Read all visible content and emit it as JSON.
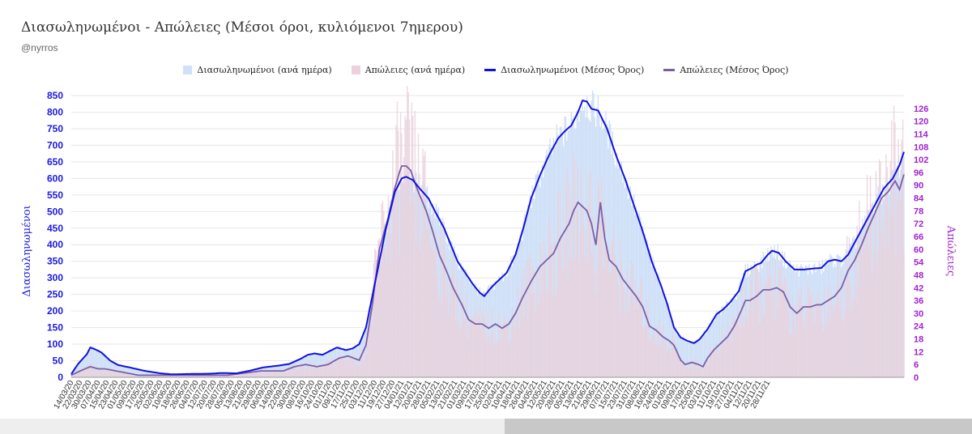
{
  "header": {
    "title": "Διασωληνωμένοι - Απώλειες (Μέσοι όροι, κυλιόμενοι 7ημερου)",
    "subtitle": "@nyrros"
  },
  "colors": {
    "intubated_daily": "#cfe0f7",
    "deaths_daily": "#ead1dc",
    "intubated_avg": "#1010e0",
    "deaths_avg": "#7b5fa6",
    "left_axis": "#1a1adf",
    "right_axis": "#a020d0"
  },
  "chart_data": {
    "type": "bar-line-combo",
    "title": "Διασωληνωμένοι - Απώλειες (Μέσοι όροι, κυλιόμενοι 7ημερου)",
    "ylabel_left": "Διασωληνωμένοι",
    "ylabel_right": "Απώλειες",
    "ylim_left": [
      0,
      850
    ],
    "ylim_right": [
      0,
      132
    ],
    "yticks_left": [
      "0",
      "50",
      "100",
      "150",
      "200",
      "250",
      "300",
      "350",
      "400",
      "450",
      "500",
      "550",
      "600",
      "650",
      "700",
      "750",
      "800",
      "850"
    ],
    "yticks_right": [
      "0",
      "6",
      "12",
      "18",
      "24",
      "30",
      "36",
      "42",
      "48",
      "54",
      "60",
      "66",
      "72",
      "78",
      "84",
      "90",
      "96",
      "102",
      "108",
      "114",
      "120",
      "126"
    ],
    "x_tick_labels": [
      "14/03/20",
      "22/03/20",
      "30/03/20",
      "07/04/20",
      "15/04/20",
      "23/04/20",
      "01/05/20",
      "09/05/20",
      "17/05/20",
      "25/05/20",
      "02/06/20",
      "10/06/20",
      "18/06/20",
      "26/06/20",
      "04/07/20",
      "12/07/20",
      "20/07/20",
      "28/07/20",
      "05/08/20",
      "13/08/20",
      "21/08/20",
      "29/08/20",
      "06/09/20",
      "14/09/20",
      "22/09/20",
      "30/09/20",
      "08/10/20",
      "16/10/20",
      "24/10/20",
      "01/11/20",
      "09/11/20",
      "17/11/20",
      "25/11/20",
      "03/12/20",
      "11/12/20",
      "19/12/20",
      "27/12/20",
      "04/01/21",
      "12/01/21",
      "20/01/21",
      "28/01/21",
      "05/02/21",
      "13/02/21",
      "21/02/21",
      "01/03/21",
      "09/03/21",
      "17/03/21",
      "25/03/21",
      "02/04/21",
      "10/04/21",
      "18/04/21",
      "26/04/21",
      "04/05/21",
      "12/05/21",
      "20/05/21",
      "28/05/21",
      "05/06/21",
      "13/06/21",
      "21/06/21",
      "29/06/21",
      "07/07/21",
      "15/07/21",
      "23/07/21",
      "31/07/21",
      "08/08/21",
      "16/08/21",
      "24/08/21",
      "01/09/21",
      "09/09/21",
      "17/09/21",
      "25/09/21",
      "03/10/21",
      "11/10/21",
      "19/10/21",
      "27/10/21",
      "04/11/21",
      "12/11/21",
      "20/11/21",
      "28/11/21"
    ],
    "series": [
      {
        "name": "Διασωληνωμένοι (ανά ημέρα)",
        "type": "bar",
        "axis": "left"
      },
      {
        "name": "Απώλειες (ανά ημέρα)",
        "type": "bar",
        "axis": "right"
      },
      {
        "name": "Διασωληνωμένοι (Μέσος Όρος)",
        "type": "line",
        "axis": "left",
        "anchors": [
          [
            0,
            10
          ],
          [
            6,
            40
          ],
          [
            14,
            70
          ],
          [
            17,
            90
          ],
          [
            21,
            85
          ],
          [
            27,
            75
          ],
          [
            35,
            50
          ],
          [
            42,
            37
          ],
          [
            52,
            30
          ],
          [
            65,
            20
          ],
          [
            80,
            12
          ],
          [
            90,
            9
          ],
          [
            104,
            10
          ],
          [
            125,
            11
          ],
          [
            135,
            13
          ],
          [
            148,
            12
          ],
          [
            160,
            20
          ],
          [
            172,
            30
          ],
          [
            185,
            35
          ],
          [
            195,
            40
          ],
          [
            205,
            55
          ],
          [
            212,
            68
          ],
          [
            218,
            72
          ],
          [
            225,
            68
          ],
          [
            232,
            80
          ],
          [
            238,
            90
          ],
          [
            246,
            82
          ],
          [
            252,
            87
          ],
          [
            258,
            100
          ],
          [
            264,
            150
          ],
          [
            270,
            250
          ],
          [
            276,
            350
          ],
          [
            282,
            450
          ],
          [
            290,
            560
          ],
          [
            296,
            600
          ],
          [
            300,
            605
          ],
          [
            306,
            595
          ],
          [
            312,
            570
          ],
          [
            320,
            540
          ],
          [
            326,
            500
          ],
          [
            334,
            450
          ],
          [
            340,
            400
          ],
          [
            346,
            350
          ],
          [
            352,
            320
          ],
          [
            360,
            280
          ],
          [
            366,
            255
          ],
          [
            370,
            245
          ],
          [
            376,
            270
          ],
          [
            382,
            290
          ],
          [
            390,
            315
          ],
          [
            398,
            370
          ],
          [
            405,
            450
          ],
          [
            412,
            540
          ],
          [
            420,
            610
          ],
          [
            428,
            670
          ],
          [
            436,
            720
          ],
          [
            442,
            742
          ],
          [
            448,
            760
          ],
          [
            454,
            800
          ],
          [
            458,
            835
          ],
          [
            462,
            832
          ],
          [
            466,
            810
          ],
          [
            472,
            805
          ],
          [
            480,
            750
          ],
          [
            488,
            670
          ],
          [
            496,
            600
          ],
          [
            504,
            520
          ],
          [
            512,
            440
          ],
          [
            520,
            350
          ],
          [
            528,
            280
          ],
          [
            534,
            220
          ],
          [
            540,
            150
          ],
          [
            546,
            120
          ],
          [
            552,
            110
          ],
          [
            558,
            103
          ],
          [
            563,
            115
          ],
          [
            570,
            145
          ],
          [
            578,
            190
          ],
          [
            584,
            205
          ],
          [
            590,
            225
          ],
          [
            598,
            260
          ],
          [
            604,
            320
          ],
          [
            610,
            330
          ],
          [
            614,
            340
          ],
          [
            618,
            345
          ],
          [
            624,
            370
          ],
          [
            628,
            382
          ],
          [
            634,
            375
          ],
          [
            640,
            350
          ],
          [
            648,
            325
          ],
          [
            656,
            325
          ],
          [
            664,
            328
          ],
          [
            672,
            330
          ],
          [
            678,
            350
          ],
          [
            684,
            355
          ],
          [
            690,
            350
          ],
          [
            696,
            370
          ],
          [
            704,
            420
          ],
          [
            712,
            470
          ],
          [
            720,
            520
          ],
          [
            728,
            570
          ],
          [
            736,
            600
          ],
          [
            742,
            640
          ],
          [
            746,
            680
          ]
        ]
      },
      {
        "name": "Απώλειες (Μέσος Όρος)",
        "type": "line",
        "axis": "right",
        "anchors": [
          [
            0,
            1
          ],
          [
            8,
            3
          ],
          [
            17,
            5
          ],
          [
            24,
            4
          ],
          [
            30,
            4
          ],
          [
            40,
            3
          ],
          [
            50,
            2
          ],
          [
            60,
            1
          ],
          [
            80,
            1
          ],
          [
            100,
            1
          ],
          [
            140,
            1
          ],
          [
            170,
            3
          ],
          [
            190,
            3
          ],
          [
            200,
            5
          ],
          [
            210,
            6
          ],
          [
            220,
            5
          ],
          [
            230,
            6
          ],
          [
            240,
            9
          ],
          [
            248,
            10
          ],
          [
            258,
            8
          ],
          [
            264,
            15
          ],
          [
            270,
            35
          ],
          [
            276,
            60
          ],
          [
            284,
            75
          ],
          [
            290,
            89
          ],
          [
            294,
            96
          ],
          [
            296,
            99
          ],
          [
            300,
            99
          ],
          [
            304,
            97
          ],
          [
            310,
            88
          ],
          [
            318,
            78
          ],
          [
            324,
            68
          ],
          [
            330,
            57
          ],
          [
            336,
            50
          ],
          [
            342,
            42
          ],
          [
            350,
            34
          ],
          [
            356,
            27
          ],
          [
            362,
            25
          ],
          [
            368,
            25
          ],
          [
            374,
            23
          ],
          [
            380,
            25
          ],
          [
            386,
            23
          ],
          [
            392,
            25
          ],
          [
            398,
            30
          ],
          [
            404,
            37
          ],
          [
            412,
            45
          ],
          [
            420,
            52
          ],
          [
            426,
            55
          ],
          [
            432,
            58
          ],
          [
            438,
            65
          ],
          [
            446,
            72
          ],
          [
            450,
            78
          ],
          [
            454,
            82
          ],
          [
            458,
            80
          ],
          [
            462,
            78
          ],
          [
            466,
            72
          ],
          [
            470,
            62
          ],
          [
            474,
            82
          ],
          [
            478,
            65
          ],
          [
            482,
            55
          ],
          [
            488,
            52
          ],
          [
            494,
            46
          ],
          [
            500,
            42
          ],
          [
            506,
            38
          ],
          [
            512,
            33
          ],
          [
            518,
            24
          ],
          [
            524,
            22
          ],
          [
            530,
            19
          ],
          [
            536,
            17
          ],
          [
            540,
            15
          ],
          [
            546,
            8
          ],
          [
            550,
            6
          ],
          [
            556,
            7
          ],
          [
            562,
            6
          ],
          [
            566,
            5
          ],
          [
            570,
            9
          ],
          [
            576,
            13
          ],
          [
            582,
            16
          ],
          [
            588,
            19
          ],
          [
            594,
            24
          ],
          [
            600,
            31
          ],
          [
            604,
            36
          ],
          [
            608,
            36
          ],
          [
            614,
            38
          ],
          [
            620,
            41
          ],
          [
            626,
            41
          ],
          [
            632,
            42
          ],
          [
            638,
            40
          ],
          [
            644,
            33
          ],
          [
            650,
            30
          ],
          [
            656,
            33
          ],
          [
            662,
            33
          ],
          [
            668,
            34
          ],
          [
            672,
            34
          ],
          [
            678,
            36
          ],
          [
            684,
            38
          ],
          [
            690,
            42
          ],
          [
            696,
            50
          ],
          [
            702,
            55
          ],
          [
            708,
            62
          ],
          [
            714,
            70
          ],
          [
            720,
            77
          ],
          [
            726,
            84
          ],
          [
            732,
            87
          ],
          [
            738,
            92
          ],
          [
            742,
            88
          ],
          [
            746,
            95
          ]
        ]
      }
    ],
    "legend": [
      "Διασωληνωμένοι (ανά ημέρα)",
      "Απώλειες (ανά ημέρα)",
      "Διασωληνωμένοι (Μέσος Όρος)",
      "Απώλειες (Μέσος Όρος)"
    ]
  }
}
